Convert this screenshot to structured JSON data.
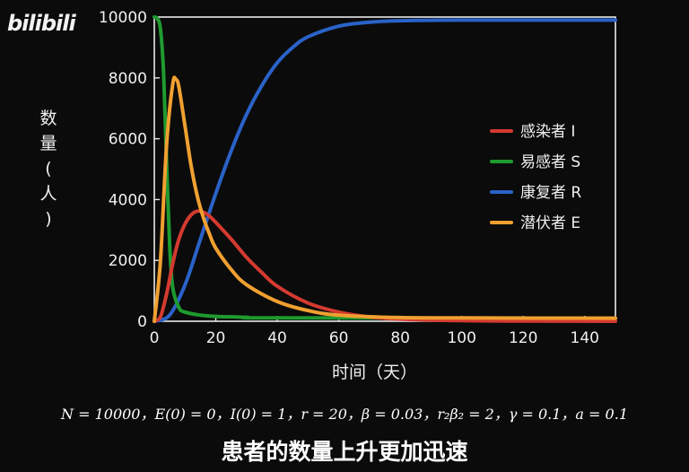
{
  "logo_text": "bilibili",
  "colors": {
    "I": "#d43a30",
    "S": "#1f9a2f",
    "R": "#2a62c8",
    "E": "#f0a030",
    "axis": "#e8e8e8",
    "background": "#0b0b0b"
  },
  "chart_data": {
    "type": "line",
    "xlabel": "时间（天）",
    "ylabel": "数量（人）",
    "xlim": [
      0,
      150
    ],
    "ylim": [
      0,
      10000
    ],
    "xticks": [
      0,
      20,
      40,
      60,
      80,
      100,
      120,
      140
    ],
    "yticks": [
      0,
      2000,
      4000,
      6000,
      8000,
      10000
    ],
    "grid": false,
    "legend_position": "right",
    "series": [
      {
        "name": "感染者 I",
        "color": "#d43a30",
        "x": [
          0,
          2,
          4,
          6,
          8,
          10,
          12,
          14,
          16,
          18,
          20,
          25,
          30,
          35,
          40,
          50,
          60,
          70,
          80,
          100,
          120,
          150
        ],
        "y": [
          1,
          150,
          900,
          1900,
          2700,
          3200,
          3500,
          3620,
          3580,
          3450,
          3250,
          2700,
          2100,
          1600,
          1150,
          600,
          300,
          140,
          70,
          20,
          5,
          0
        ]
      },
      {
        "name": "易感者 S",
        "color": "#1f9a2f",
        "x": [
          0,
          1,
          2,
          3,
          4,
          5,
          6,
          8,
          10,
          15,
          20,
          30,
          40,
          150
        ],
        "y": [
          9999,
          9950,
          9600,
          8200,
          5200,
          2500,
          1100,
          450,
          300,
          200,
          160,
          130,
          110,
          100
        ]
      },
      {
        "name": "康复者 R",
        "color": "#2a62c8",
        "x": [
          0,
          5,
          10,
          15,
          20,
          25,
          30,
          35,
          40,
          45,
          50,
          60,
          70,
          80,
          100,
          120,
          150
        ],
        "y": [
          0,
          200,
          1200,
          2700,
          4200,
          5600,
          6800,
          7750,
          8500,
          9000,
          9350,
          9700,
          9830,
          9880,
          9900,
          9900,
          9900
        ]
      },
      {
        "name": "潜伏者 E",
        "color": "#f0a030",
        "x": [
          0,
          2,
          4,
          6,
          7,
          8,
          10,
          12,
          14,
          16,
          18,
          20,
          25,
          30,
          40,
          50,
          60,
          80,
          100,
          150
        ],
        "y": [
          0,
          2000,
          5800,
          7800,
          7950,
          7700,
          6400,
          5100,
          4100,
          3400,
          2850,
          2400,
          1700,
          1200,
          650,
          350,
          200,
          120,
          110,
          100
        ]
      }
    ]
  },
  "formula": "N = 10000，E(0) = 0，I(0) = 1，r = 20，β = 0.03，r₂β₂ = 2，γ = 0.1，a = 0.1",
  "subtitle": "患者的数量上升更加迅速"
}
